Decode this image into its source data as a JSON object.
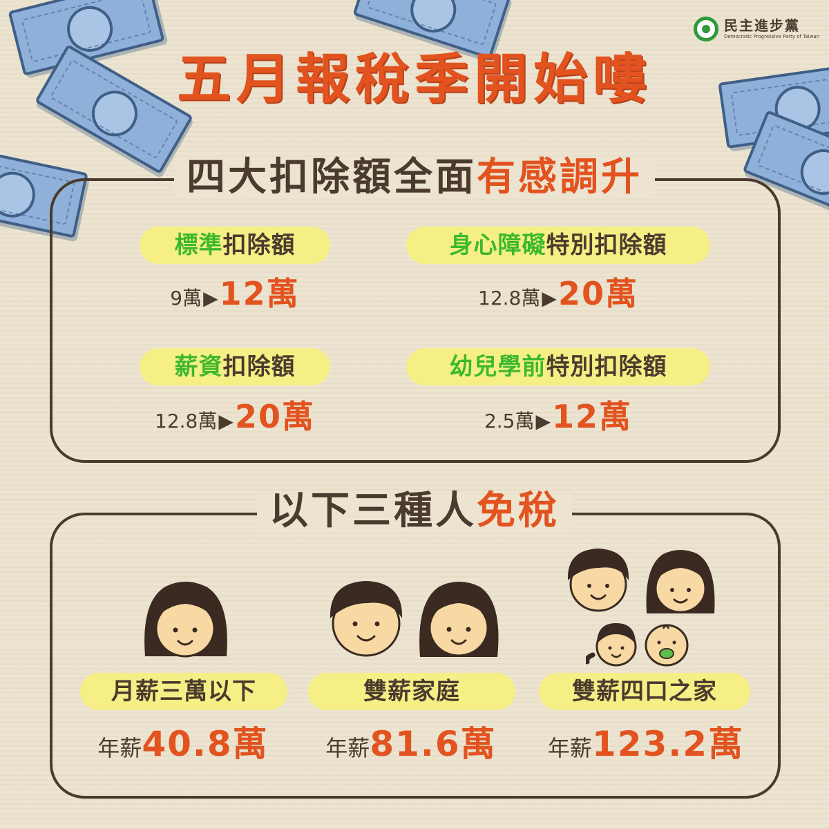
{
  "logo": {
    "name_zh": "民主進步黨",
    "name_en": "Democratic Progressive Party of Taiwan"
  },
  "title": "五月報稅季開始嘍",
  "deductions": {
    "heading_prefix": "四大扣除額全面",
    "heading_emphasis": "有感調升",
    "items": [
      {
        "highlight": "標準",
        "label": "扣除額",
        "from": "9萬",
        "to": "12萬"
      },
      {
        "highlight": "身心障礙",
        "label": "特別扣除額",
        "from": "12.8萬",
        "to": "20萬"
      },
      {
        "highlight": "薪資",
        "label": "扣除額",
        "from": "12.8萬",
        "to": "20萬"
      },
      {
        "highlight": "幼兒學前",
        "label": "特別扣除額",
        "from": "2.5萬",
        "to": "12萬"
      }
    ],
    "arrow_icon": "triangle-right-icon"
  },
  "exempt": {
    "heading_prefix": "以下三種人",
    "heading_emphasis": "免稅",
    "groups": [
      {
        "label": "月薪三萬以下",
        "salary_label": "年薪",
        "salary_value": "40.8萬"
      },
      {
        "label": "雙薪家庭",
        "salary_label": "年薪",
        "salary_value": "81.6萬"
      },
      {
        "label": "雙薪四口之家",
        "salary_label": "年薪",
        "salary_value": "123.2萬"
      }
    ]
  },
  "colors": {
    "background": "#ece4d0",
    "accent_red": "#e2531f",
    "accent_green": "#3db82e",
    "pill_yellow": "#f6ef85",
    "text_dark": "#4a3b2e",
    "bill_blue": "#8fb1d9"
  }
}
